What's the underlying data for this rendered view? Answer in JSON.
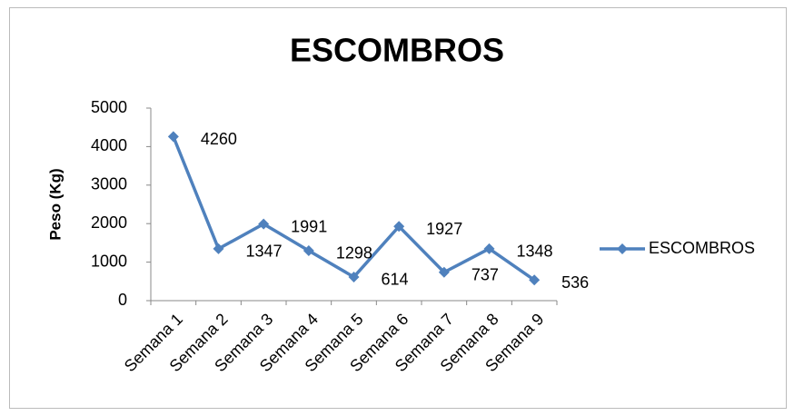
{
  "chart_data": {
    "type": "line",
    "title": "ESCOMBROS",
    "y_label": "Peso (Kg)",
    "categories": [
      "Semana 1",
      "Semana 2",
      "Semana 3",
      "Semana 4",
      "Semana 5",
      "Semana 6",
      "Semana 7",
      "Semana 8",
      "Semana 9"
    ],
    "series": [
      {
        "name": "ESCOMBROS",
        "color": "#4f81bd",
        "values": [
          4260,
          1347,
          1991,
          1298,
          614,
          1927,
          737,
          1348,
          536
        ]
      }
    ],
    "ylim": [
      0,
      5000
    ],
    "yticks": [
      0,
      1000,
      2000,
      3000,
      4000,
      5000
    ],
    "legend": "right"
  }
}
